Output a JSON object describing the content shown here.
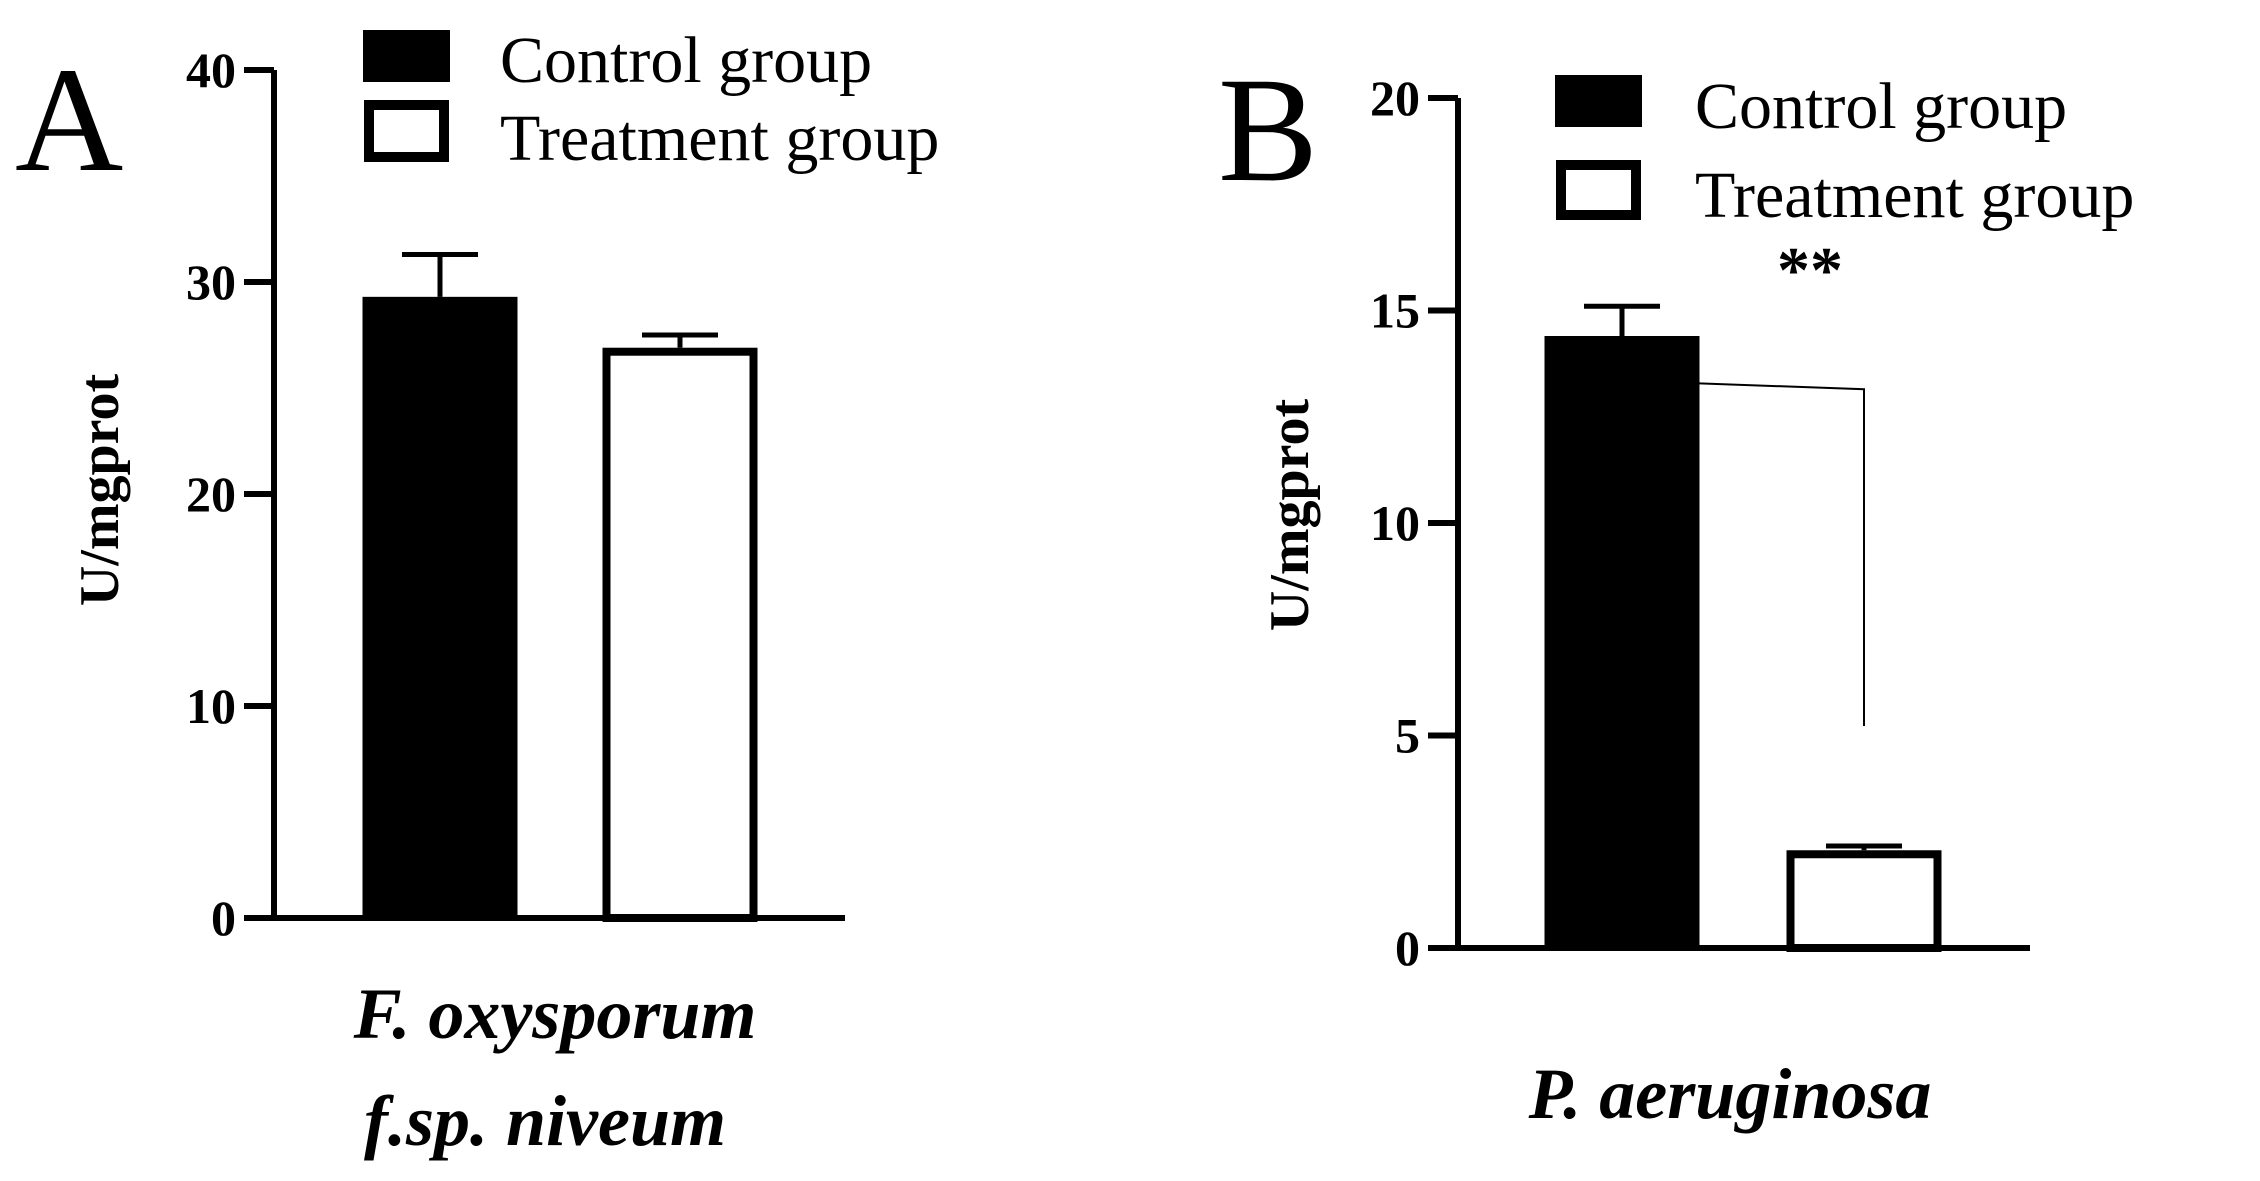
{
  "chart_data": [
    {
      "panel": "A",
      "type": "bar",
      "categories": [
        "Control group",
        "Treatment group"
      ],
      "values": [
        29.3,
        26.9
      ],
      "errors": [
        2.0,
        0.6
      ],
      "fills": [
        "#000000",
        "#ffffff"
      ],
      "ylabel": "U/mgprot",
      "xlabel": [
        "F. oxysporum",
        "f.sp. niveum"
      ],
      "ylim": [
        0,
        40
      ],
      "yticks": [
        0,
        10,
        20,
        30,
        40
      ],
      "legend": [
        "Control group",
        "Treatment group"
      ],
      "significance": ""
    },
    {
      "panel": "B",
      "type": "bar",
      "categories": [
        "Control group",
        "Treatment group"
      ],
      "values": [
        14.4,
        2.3
      ],
      "errors": [
        0.7,
        0.1
      ],
      "fills": [
        "#000000",
        "#ffffff"
      ],
      "ylabel": "U/mgprot",
      "xlabel": [
        "P. aeruginosa"
      ],
      "ylim": [
        0,
        20
      ],
      "yticks": [
        0,
        5,
        10,
        15,
        20
      ],
      "legend": [
        "Control group",
        "Treatment group"
      ],
      "significance": "**"
    }
  ]
}
